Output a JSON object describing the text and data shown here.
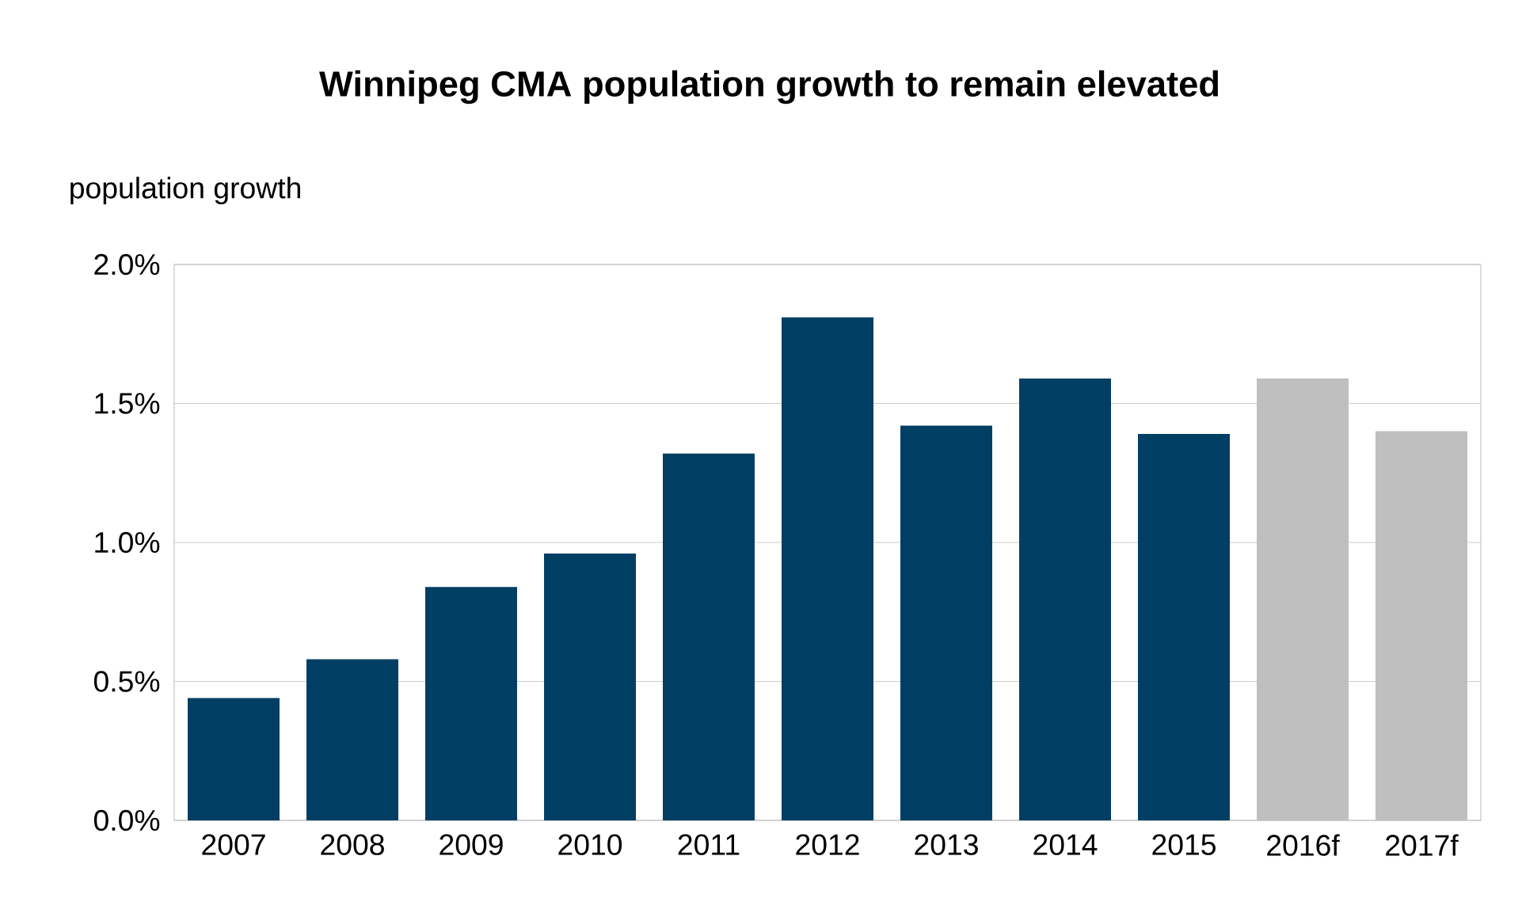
{
  "chart_data": {
    "type": "bar",
    "title": "Winnipeg CMA population growth to remain elevated",
    "ylabel": "population growth",
    "categories": [
      "2007",
      "2008",
      "2009",
      "2010",
      "2011",
      "2012",
      "2013",
      "2014",
      "2015",
      "2016f",
      "2017f"
    ],
    "values": [
      0.44,
      0.58,
      0.84,
      0.96,
      1.32,
      1.81,
      1.42,
      1.59,
      1.39,
      1.59,
      1.4
    ],
    "colors": [
      "#003f63",
      "#003f63",
      "#003f63",
      "#003f63",
      "#003f63",
      "#003f63",
      "#003f63",
      "#003f63",
      "#003f63",
      "#bfbfbf",
      "#bfbfbf"
    ],
    "ylim": [
      0,
      2.0
    ],
    "yticks": [
      {
        "value": 0,
        "label": "0.0%"
      },
      {
        "value": 0.5,
        "label": "0.5%"
      },
      {
        "value": 1.0,
        "label": "1.0%"
      },
      {
        "value": 1.5,
        "label": "1.5%"
      },
      {
        "value": 2.0,
        "label": "2.0%"
      }
    ],
    "grid": "y"
  }
}
